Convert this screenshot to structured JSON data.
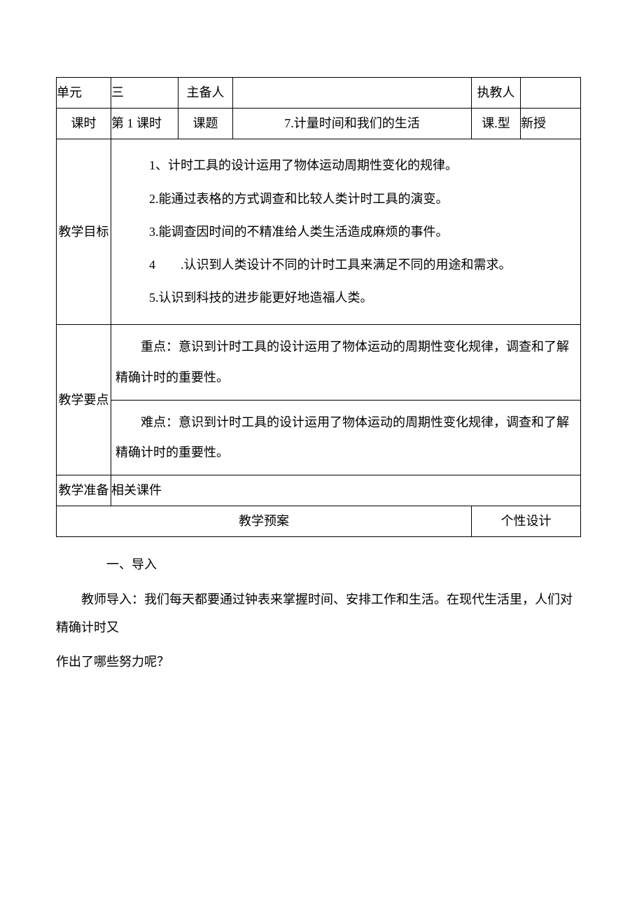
{
  "row1": {
    "label": "单元",
    "unit": "三",
    "prep_person_label": "主备人",
    "prep_person_value": "",
    "teacher_label": "执教人",
    "teacher_value": ""
  },
  "row2": {
    "label": "课时",
    "period": "第 1 课时",
    "topic_label": "课题",
    "topic_value": "7.计量时间和我们的生活",
    "type_label": "课.型",
    "type_value": "新授"
  },
  "objectives": {
    "label": "教学目标",
    "items": [
      "1、计时工具的设计运用了物体运动周期性变化的规律。",
      "2.能通过表格的方式调查和比较人类计时工具的演变。",
      "3.能调查因时间的不精准给人类生活造成麻烦的事件。",
      "4　　.认识到人类设计不同的计时工具来满足不同的用途和需求。",
      "5.认识到科技的进步能更好地造福人类。"
    ]
  },
  "keypoints": {
    "label": "教学要点",
    "focus": "重点：意识到计时工具的设计运用了物体运动的周期性变化规律，调查和了解精确计时的重要性。",
    "difficulty": "难点：意识到计时工具的设计运用了物体运动的周期性变化规律，调查和了解精确计时的重要性。"
  },
  "prep": {
    "label": "教学准备",
    "value": "相关课件"
  },
  "plan": {
    "plan_label": "教学预案",
    "design_label": "个性设计"
  },
  "body": {
    "p1": "一、导入",
    "p2": "教师导入：我们每天都要通过钟表来掌握时间、安排工作和生活。在现代生活里，人们对精确计时又",
    "p3": "作出了哪些努力呢？"
  }
}
